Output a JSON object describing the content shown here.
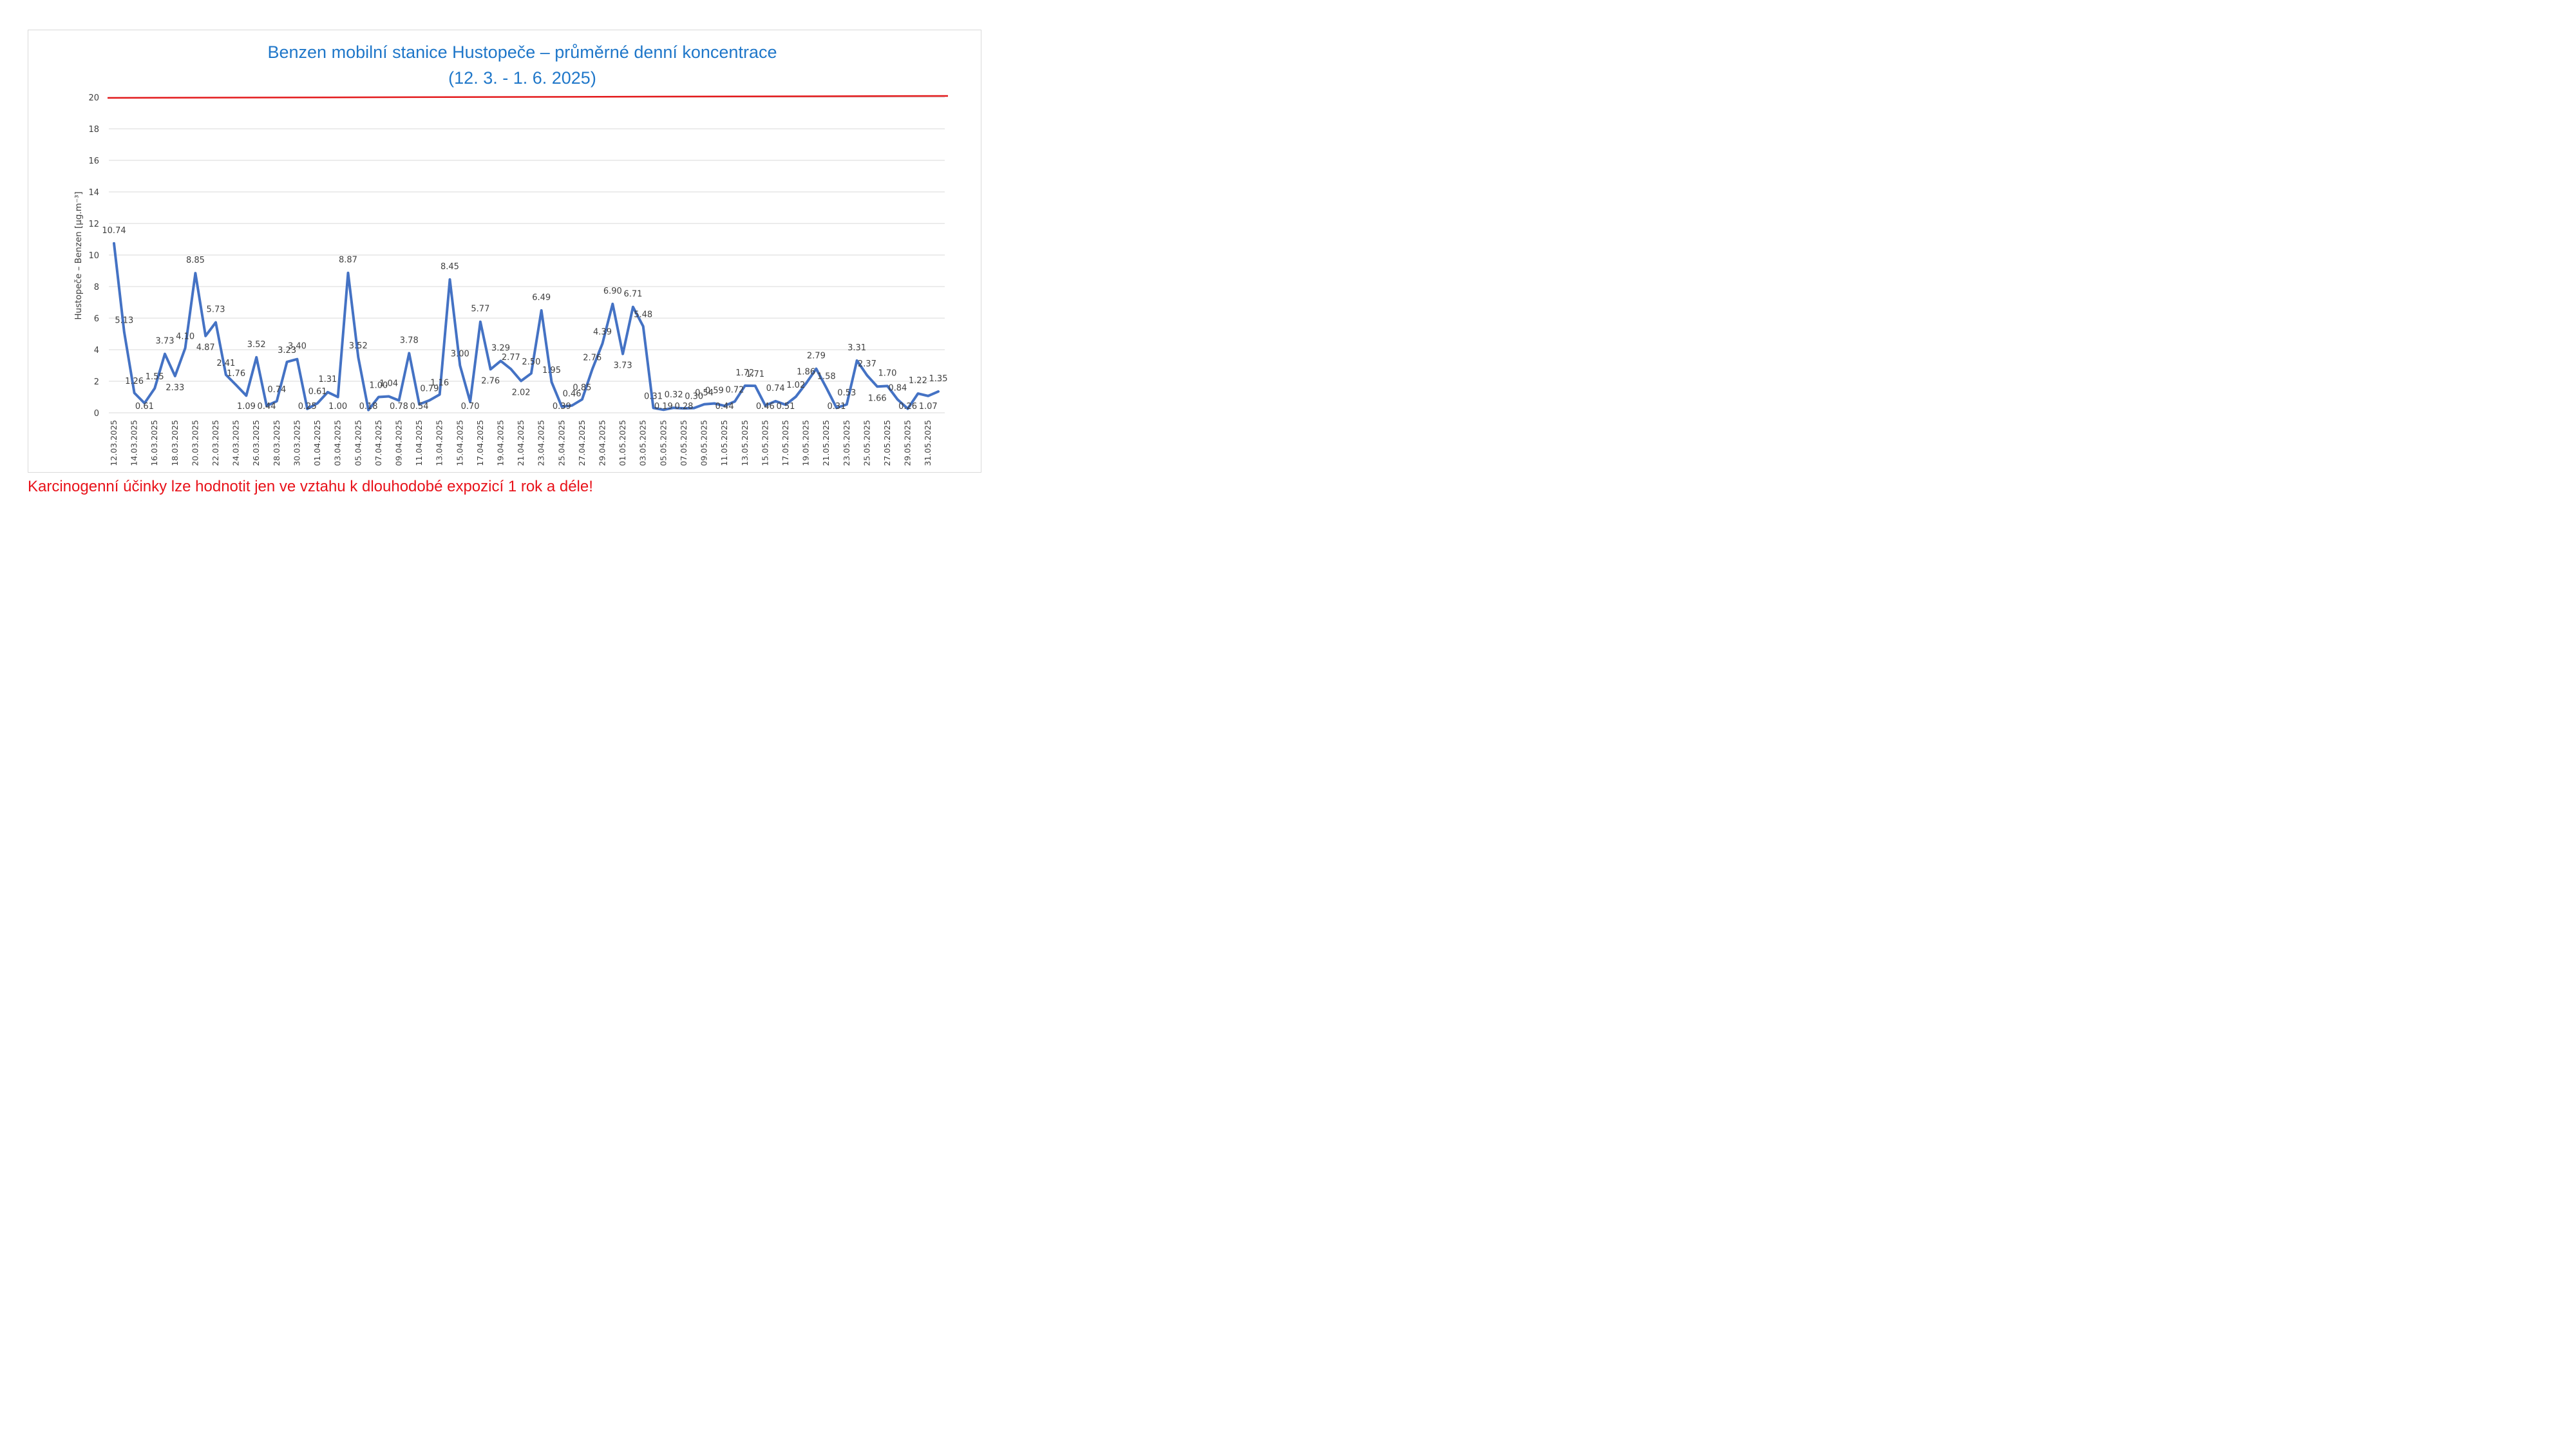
{
  "chart_data": {
    "type": "line",
    "title_line1": "Benzen mobilní stanice Hustopeče – průměrné denní koncentrace",
    "title_line2": "(12. 3. - 1. 6. 2025)",
    "ylabel": "Hustopeče – Benzen  [µg.m⁻³]",
    "ylim": [
      0,
      20
    ],
    "yticks": [
      "0",
      "2",
      "4",
      "6",
      "8",
      "10",
      "12",
      "14",
      "16",
      "18",
      "20"
    ],
    "grid": true,
    "limit_line": {
      "value": 20,
      "color": "#e31a1c"
    },
    "series_color": "#4472c4",
    "x": [
      "12.03.2025",
      "13.03.2025",
      "14.03.2025",
      "15.03.2025",
      "16.03.2025",
      "17.03.2025",
      "18.03.2025",
      "19.03.2025",
      "20.03.2025",
      "21.03.2025",
      "22.03.2025",
      "23.03.2025",
      "24.03.2025",
      "25.03.2025",
      "26.03.2025",
      "27.03.2025",
      "28.03.2025",
      "29.03.2025",
      "30.03.2025",
      "31.03.2025",
      "01.04.2025",
      "02.04.2025",
      "03.04.2025",
      "04.04.2025",
      "05.04.2025",
      "06.04.2025",
      "07.04.2025",
      "08.04.2025",
      "09.04.2025",
      "10.04.2025",
      "11.04.2025",
      "12.04.2025",
      "13.04.2025",
      "14.04.2025",
      "15.04.2025",
      "16.04.2025",
      "17.04.2025",
      "18.04.2025",
      "19.04.2025",
      "20.04.2025",
      "21.04.2025",
      "22.04.2025",
      "23.04.2025",
      "24.04.2025",
      "25.04.2025",
      "26.04.2025",
      "27.04.2025",
      "28.04.2025",
      "29.04.2025",
      "30.04.2025",
      "01.05.2025",
      "02.05.2025",
      "03.05.2025",
      "04.05.2025",
      "05.05.2025",
      "06.05.2025",
      "07.05.2025",
      "08.05.2025",
      "09.05.2025",
      "10.05.2025",
      "11.05.2025",
      "12.05.2025",
      "13.05.2025",
      "14.05.2025",
      "15.05.2025",
      "16.05.2025",
      "17.05.2025",
      "18.05.2025",
      "19.05.2025",
      "20.05.2025",
      "21.05.2025",
      "22.05.2025",
      "23.05.2025",
      "24.05.2025",
      "25.05.2025",
      "26.05.2025",
      "27.05.2025",
      "28.05.2025",
      "29.05.2025",
      "30.05.2025",
      "31.05.2025",
      "01.06.2025"
    ],
    "values": [
      10.74,
      5.13,
      1.26,
      0.61,
      1.55,
      3.73,
      2.33,
      4.1,
      8.85,
      4.87,
      5.73,
      2.41,
      1.76,
      1.09,
      3.52,
      0.44,
      0.74,
      3.23,
      3.4,
      0.25,
      0.61,
      1.31,
      1.0,
      8.87,
      3.52,
      0.18,
      1.0,
      1.04,
      0.78,
      3.78,
      0.54,
      0.79,
      1.16,
      8.45,
      3.0,
      0.7,
      5.77,
      2.76,
      3.29,
      2.77,
      2.02,
      2.5,
      6.49,
      1.95,
      0.39,
      0.46,
      0.85,
      2.76,
      4.39,
      6.9,
      3.73,
      6.71,
      5.48,
      0.31,
      0.19,
      0.32,
      0.28,
      0.3,
      0.54,
      0.59,
      0.44,
      0.72,
      1.72,
      1.71,
      0.46,
      0.74,
      0.51,
      1.02,
      1.86,
      2.79,
      1.58,
      0.31,
      0.53,
      3.31,
      2.37,
      1.66,
      1.7,
      0.84,
      0.26,
      1.22,
      1.07,
      1.35
    ],
    "labels": [
      "10.74",
      "5.13",
      "1.26",
      "0.61",
      "1.55",
      "3.73",
      "2.33",
      "4.10",
      "8.85",
      "4.87",
      "5.73",
      "2.41",
      "1.76",
      "1.09",
      "3.52",
      "0.44",
      "0.74",
      "3.23",
      "3.40",
      "0.25",
      "0.61",
      "1.31",
      "1.00",
      "8.87",
      "3.52",
      "0.18",
      "1.00",
      "1.04",
      "0.78",
      "3.78",
      "0.54",
      "0.79",
      "1.16",
      "8.45",
      "3.00",
      "0.70",
      "5.77",
      "2.76",
      "3.29",
      "2.77",
      "2.02",
      "2.50",
      "6.49",
      "1.95",
      "0.39",
      "0.46",
      "0.85",
      "2.76",
      "4.39",
      "6.90",
      "3.73",
      "6.71",
      "5.48",
      "0.31",
      "0.19",
      "0.32",
      "0.28",
      "0.30",
      "0.54",
      "0.59",
      "0.44",
      "0.72",
      "1.72",
      "1.71",
      "0.46",
      "0.74",
      "0.51",
      "1.02",
      "1.86",
      "2.79",
      "1.58",
      "0.31",
      "0.53",
      "3.31",
      "2.37",
      "1.66",
      "1.70",
      "0.84",
      "0.26",
      "1.22",
      "1.07",
      "1.35"
    ],
    "x_tick_labels": [
      "12.03.2025",
      "14.03.2025",
      "16.03.2025",
      "18.03.2025",
      "20.03.2025",
      "22.03.2025",
      "24.03.2025",
      "26.03.2025",
      "28.03.2025",
      "30.03.2025",
      "01.04.2025",
      "03.04.2025",
      "05.04.2025",
      "07.04.2025",
      "09.04.2025",
      "11.04.2025",
      "13.04.2025",
      "15.04.2025",
      "17.04.2025",
      "19.04.2025",
      "21.04.2025",
      "23.04.2025",
      "25.04.2025",
      "27.04.2025",
      "29.04.2025",
      "01.05.2025",
      "03.05.2025",
      "05.05.2025",
      "07.05.2025",
      "09.05.2025",
      "11.05.2025",
      "13.05.2025",
      "15.05.2025",
      "17.05.2025",
      "19.05.2025",
      "21.05.2025",
      "23.05.2025",
      "25.05.2025",
      "27.05.2025",
      "29.05.2025",
      "31.05.2025"
    ]
  },
  "footnote": "Karcinogenní účinky lze hodnotit jen ve vztahu k dlouhodobé expozicí 1 rok a déle!"
}
